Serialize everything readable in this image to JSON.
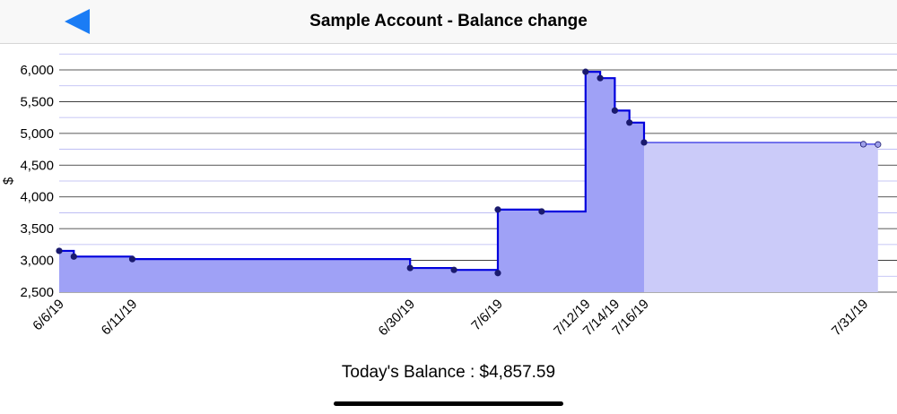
{
  "nav": {
    "title": "Sample Account - Balance change",
    "back_icon": "back-arrow-icon",
    "accent": "#1a7cf5"
  },
  "footer": {
    "balance_text": "Today's Balance : $4,857.59"
  },
  "chart_data": {
    "type": "area",
    "step": true,
    "title": "",
    "xlabel": "",
    "ylabel": "$",
    "ylim": [
      2500,
      6000
    ],
    "y_ticks": [
      2500,
      3000,
      3500,
      4000,
      4500,
      5000,
      5500,
      6000
    ],
    "y_tick_labels": [
      "2,500",
      "3,000",
      "3,500",
      "4,000",
      "4,500",
      "5,000",
      "5,500",
      "6,000"
    ],
    "x_tick_labels": [
      "6/6/19",
      "6/11/19",
      "6/30/19",
      "7/6/19",
      "7/12/19",
      "7/14/19",
      "7/16/19",
      "7/31/19"
    ],
    "grid": true,
    "colors": {
      "line": "#0000dd",
      "past_fill": "#9fa1f6",
      "future_fill": "#cbcbf9",
      "point": "#1a1a6e",
      "future_point": "#9ea0ea",
      "grid_major": "#222222",
      "grid_minor": "#b5b5f2"
    },
    "today": "7/16/19",
    "points": [
      {
        "x": "6/6/19",
        "y": 3150
      },
      {
        "x": "6/7/19",
        "y": 3060
      },
      {
        "x": "6/11/19",
        "y": 3020
      },
      {
        "x": "6/30/19",
        "y": 2880
      },
      {
        "x": "7/3/19",
        "y": 2850
      },
      {
        "x": "7/6/19",
        "y": 2800
      },
      {
        "x": "7/6/19",
        "y": 3800
      },
      {
        "x": "7/9/19",
        "y": 3770
      },
      {
        "x": "7/12/19",
        "y": 5970
      },
      {
        "x": "7/13/19",
        "y": 5870
      },
      {
        "x": "7/14/19",
        "y": 5360
      },
      {
        "x": "7/15/19",
        "y": 5170
      },
      {
        "x": "7/16/19",
        "y": 4857.59
      },
      {
        "x": "7/31/19",
        "y": 4830
      },
      {
        "x": "8/1/19",
        "y": 4825
      }
    ]
  }
}
